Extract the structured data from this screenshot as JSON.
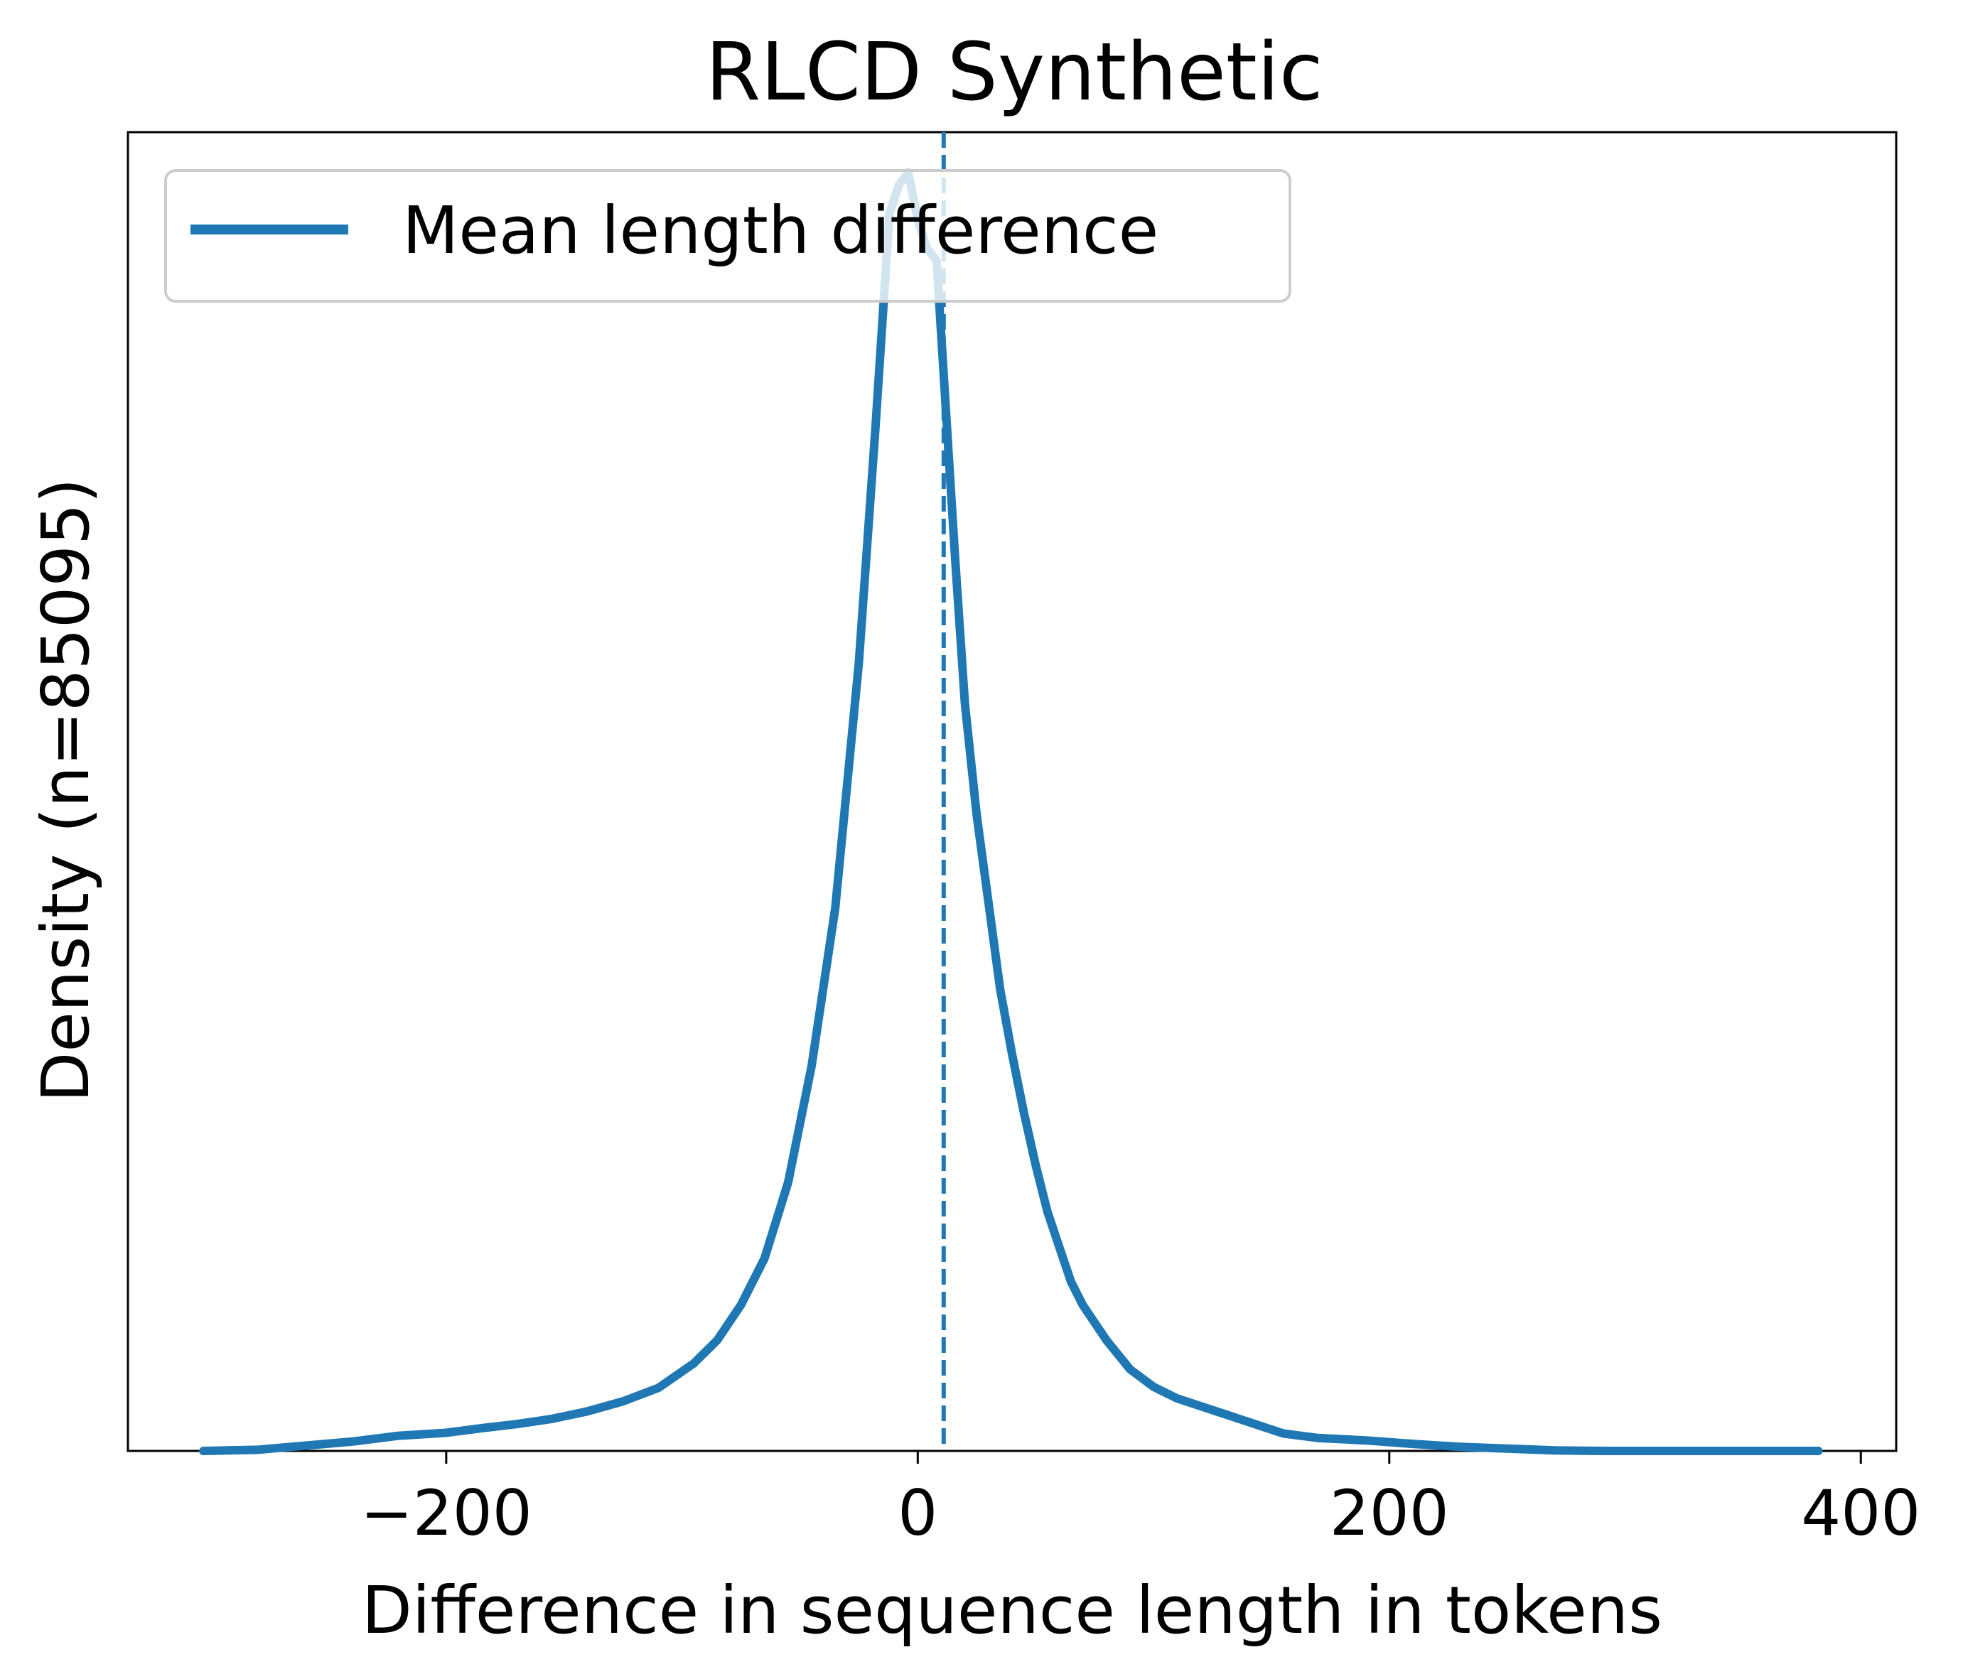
{
  "chart_data": {
    "type": "line",
    "title": "RLCD Synthetic",
    "xlabel": "Difference in sequence length in tokens",
    "ylabel": "Density (n=85095)",
    "xlim": [
      -335,
      415
    ],
    "ylim": [
      0,
      0.0226
    ],
    "xticks": [
      -200,
      0,
      200,
      400
    ],
    "xtick_labels": [
      "−200",
      "0",
      "200",
      "400"
    ],
    "yticks_visible": false,
    "grid": false,
    "legend": {
      "position": "top-left",
      "entries": [
        {
          "label": "Mean length difference",
          "color": "#1f77b4",
          "style": "solid"
        }
      ]
    },
    "mean_line": {
      "x": 11,
      "style": "dashed",
      "color": "#1f77b4"
    },
    "series": [
      {
        "name": "Mean length difference",
        "color": "#1f77b4",
        "x": [
          -303,
          -280,
          -260,
          -240,
          -220,
          -200,
          -185,
          -170,
          -155,
          -140,
          -125,
          -110,
          -95,
          -85,
          -75,
          -65,
          -55,
          -45,
          -35,
          -25,
          -18,
          -12,
          -8,
          -4,
          0,
          4,
          8,
          12,
          16,
          20,
          25,
          30,
          35,
          40,
          45,
          50,
          55,
          60,
          65,
          70,
          80,
          90,
          100,
          110,
          125,
          140,
          155,
          170,
          190,
          210,
          230,
          250,
          270,
          290,
          320,
          350,
          382
        ],
        "y": [
          0,
          2e-05,
          9e-05,
          0.00016,
          0.00026,
          0.00031,
          0.00039,
          0.00046,
          0.00055,
          0.00068,
          0.00085,
          0.00108,
          0.0015,
          0.0019,
          0.0025,
          0.0033,
          0.0046,
          0.0066,
          0.0093,
          0.0135,
          0.0175,
          0.0212,
          0.0217,
          0.0219,
          0.0211,
          0.0206,
          0.0204,
          0.0178,
          0.0152,
          0.0128,
          0.0109,
          0.0094,
          0.0079,
          0.0068,
          0.0058,
          0.0049,
          0.0041,
          0.0035,
          0.0029,
          0.0025,
          0.0019,
          0.0014,
          0.0011,
          0.0009,
          0.0007,
          0.0005,
          0.0003,
          0.00022,
          0.00018,
          0.00012,
          7e-05,
          4e-05,
          1e-05,
          0,
          0,
          0,
          0
        ]
      }
    ]
  }
}
